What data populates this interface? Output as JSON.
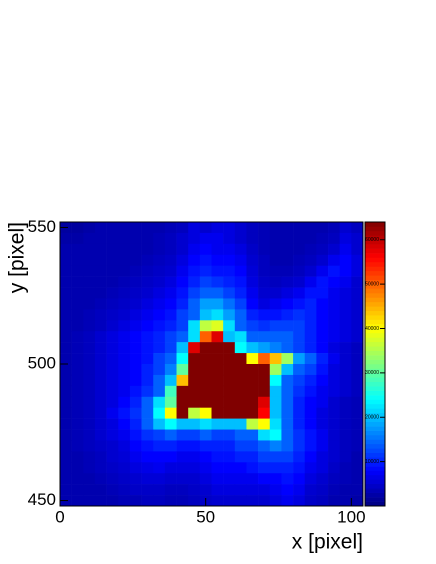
{
  "chart_data": {
    "type": "heatmap",
    "xlabel": "x [pixel]",
    "ylabel": "y [pixel]",
    "xlim": [
      0,
      104
    ],
    "ylim": [
      448,
      552
    ],
    "xticks": [
      0,
      50,
      100
    ],
    "yticks": [
      450,
      500,
      550
    ],
    "zlim": [
      0,
      64000
    ],
    "zticks": [
      10000,
      20000,
      30000,
      40000,
      50000,
      60000
    ],
    "palette": "jet",
    "z": [
      [
        2000,
        2000,
        2500,
        3000,
        3000,
        3000,
        3000,
        3000,
        3000,
        3500,
        4000,
        6000,
        5000,
        6000,
        6000,
        5000,
        4000,
        3500,
        3000,
        3000,
        3000,
        3000,
        3000,
        3500,
        5000,
        4000
      ],
      [
        2500,
        2500,
        3000,
        3000,
        3000,
        3000,
        3000,
        3000,
        3500,
        4000,
        5000,
        6000,
        7000,
        7000,
        6000,
        5000,
        4000,
        3500,
        3000,
        3000,
        3000,
        3000,
        3500,
        4000,
        6000,
        5000
      ],
      [
        3000,
        3000,
        3000,
        3000,
        3000,
        3000,
        3000,
        3000,
        3500,
        4000,
        5000,
        7000,
        8000,
        7000,
        7000,
        6000,
        4500,
        3500,
        3000,
        3000,
        3000,
        3500,
        4000,
        5000,
        7000,
        5000
      ],
      [
        3000,
        3000,
        3000,
        3000,
        3000,
        3000,
        3000,
        3500,
        4000,
        4500,
        6000,
        8000,
        9000,
        8000,
        8000,
        7000,
        5000,
        4000,
        3000,
        3000,
        3500,
        4000,
        5000,
        7000,
        8000,
        6000
      ],
      [
        3000,
        3000,
        3000,
        3000,
        3000,
        3000,
        3500,
        4000,
        4500,
        5000,
        7000,
        9000,
        10000,
        9000,
        9000,
        8000,
        5500,
        4000,
        3500,
        3500,
        4000,
        5000,
        7000,
        9000,
        8000,
        6000
      ],
      [
        3000,
        3000,
        3000,
        3000,
        3000,
        3500,
        4000,
        4500,
        5000,
        6000,
        8000,
        10000,
        12000,
        11000,
        10000,
        9000,
        6000,
        4500,
        4000,
        4500,
        5000,
        7000,
        9000,
        8000,
        7000,
        5000
      ],
      [
        3000,
        3000,
        3000,
        3000,
        3500,
        4000,
        4500,
        5000,
        6000,
        7000,
        9000,
        12000,
        14000,
        14000,
        12000,
        10000,
        7000,
        5000,
        5000,
        6000,
        7000,
        9000,
        9000,
        7000,
        6000,
        5000
      ],
      [
        3000,
        3000,
        3000,
        3500,
        4000,
        4500,
        5000,
        6000,
        7000,
        8000,
        10000,
        14000,
        18000,
        18000,
        15000,
        12000,
        8000,
        6000,
        7000,
        8000,
        9000,
        10000,
        8000,
        7000,
        6000,
        5000
      ],
      [
        3000,
        3000,
        3500,
        4000,
        4500,
        5000,
        6000,
        7000,
        8000,
        9000,
        12000,
        14000,
        20000,
        22000,
        18000,
        14000,
        10000,
        9000,
        9000,
        10000,
        11000,
        10000,
        8000,
        7000,
        6000,
        5000
      ],
      [
        3000,
        3000,
        3500,
        4000,
        5000,
        6000,
        7000,
        8000,
        9000,
        10000,
        12000,
        22000,
        36000,
        38000,
        22000,
        14000,
        12000,
        11000,
        12000,
        12000,
        12000,
        10000,
        8000,
        7000,
        6000,
        5000
      ],
      [
        3000,
        3500,
        4000,
        5000,
        6000,
        7000,
        8000,
        9000,
        10000,
        12000,
        14000,
        22000,
        50000,
        58000,
        20000,
        22000,
        14000,
        14000,
        14000,
        14000,
        12000,
        10000,
        8000,
        7000,
        6000,
        5000
      ],
      [
        3000,
        3500,
        4000,
        5000,
        6000,
        7000,
        8000,
        9000,
        10000,
        12000,
        20000,
        58000,
        64000,
        64000,
        64000,
        24000,
        20000,
        18000,
        16000,
        14000,
        12000,
        10000,
        8000,
        6000,
        5000,
        4000
      ],
      [
        3000,
        3500,
        4000,
        5000,
        6000,
        7000,
        8000,
        9000,
        12000,
        14000,
        24000,
        64000,
        64000,
        64000,
        64000,
        64000,
        40000,
        50000,
        44000,
        34000,
        18000,
        14000,
        10000,
        7000,
        5000,
        4000
      ],
      [
        3000,
        3500,
        4000,
        5000,
        6000,
        7000,
        8000,
        10000,
        12000,
        16000,
        30000,
        64000,
        64000,
        64000,
        64000,
        64000,
        64000,
        64000,
        34000,
        20000,
        14000,
        12000,
        9000,
        6000,
        5000,
        4000
      ],
      [
        3000,
        3500,
        4000,
        5000,
        6000,
        7000,
        8000,
        10000,
        14000,
        20000,
        44000,
        64000,
        64000,
        64000,
        64000,
        64000,
        64000,
        64000,
        24000,
        14000,
        12000,
        10000,
        8000,
        6000,
        5000,
        4000
      ],
      [
        3000,
        3500,
        4000,
        5000,
        6000,
        7000,
        9000,
        11000,
        14000,
        28000,
        64000,
        64000,
        64000,
        64000,
        64000,
        64000,
        64000,
        64000,
        20000,
        14000,
        11000,
        9000,
        7000,
        6000,
        5000,
        4000
      ],
      [
        3000,
        3500,
        4000,
        5000,
        6000,
        8000,
        10000,
        14000,
        22000,
        30000,
        64000,
        64000,
        64000,
        64000,
        64000,
        64000,
        64000,
        58000,
        20000,
        14000,
        10000,
        8000,
        7000,
        5000,
        4000,
        3500
      ],
      [
        3000,
        3500,
        4000,
        5000,
        7000,
        9000,
        11000,
        14000,
        24000,
        40000,
        64000,
        36000,
        40000,
        64000,
        64000,
        64000,
        64000,
        56000,
        20000,
        14000,
        10000,
        8000,
        6000,
        5000,
        4000,
        3500
      ],
      [
        3000,
        3500,
        4000,
        5000,
        6000,
        8000,
        10000,
        14000,
        20000,
        24000,
        20000,
        20000,
        22000,
        20000,
        20000,
        20000,
        36000,
        40000,
        22000,
        14000,
        10000,
        8000,
        6000,
        5000,
        4000,
        3500
      ],
      [
        3000,
        3500,
        4000,
        5000,
        6000,
        7000,
        9000,
        11000,
        12000,
        14000,
        12000,
        12000,
        14000,
        12000,
        12000,
        14000,
        14000,
        22000,
        24000,
        14000,
        11000,
        9000,
        7000,
        5000,
        4000,
        3500
      ],
      [
        3000,
        3500,
        4000,
        4500,
        5000,
        6000,
        8000,
        9000,
        10000,
        10000,
        9000,
        9000,
        10000,
        10000,
        10000,
        12000,
        12000,
        14000,
        16000,
        14000,
        11000,
        9000,
        7000,
        5000,
        4000,
        3500
      ],
      [
        3000,
        3000,
        3500,
        4000,
        5000,
        5500,
        7000,
        8000,
        8000,
        8000,
        7000,
        7000,
        8000,
        9000,
        9000,
        10000,
        10000,
        12000,
        12000,
        12000,
        10000,
        8000,
        6000,
        5000,
        4000,
        3000
      ],
      [
        3000,
        3000,
        3500,
        4000,
        4500,
        5000,
        6000,
        6500,
        7000,
        6000,
        6000,
        6000,
        7000,
        8000,
        8000,
        8000,
        9000,
        10000,
        10000,
        10000,
        9000,
        7000,
        6000,
        4500,
        3500,
        3000
      ],
      [
        3000,
        3000,
        3000,
        3500,
        4000,
        4500,
        5000,
        5500,
        5500,
        5000,
        5000,
        5000,
        6000,
        7000,
        7000,
        7000,
        7000,
        8000,
        8000,
        9000,
        8000,
        6000,
        5000,
        4000,
        3500,
        3000
      ],
      [
        3000,
        3000,
        3000,
        3000,
        3500,
        4000,
        4500,
        4500,
        4500,
        4000,
        4000,
        4500,
        5000,
        6000,
        6000,
        6000,
        6000,
        6000,
        7000,
        8000,
        7000,
        5000,
        4500,
        3500,
        3000,
        3000
      ],
      [
        3000,
        3000,
        3000,
        3000,
        3000,
        3500,
        3500,
        4000,
        4000,
        3500,
        3500,
        4000,
        4500,
        5000,
        5000,
        5000,
        5000,
        5000,
        6000,
        7000,
        6000,
        4500,
        4000,
        3000,
        3000,
        2500
      ]
    ]
  }
}
